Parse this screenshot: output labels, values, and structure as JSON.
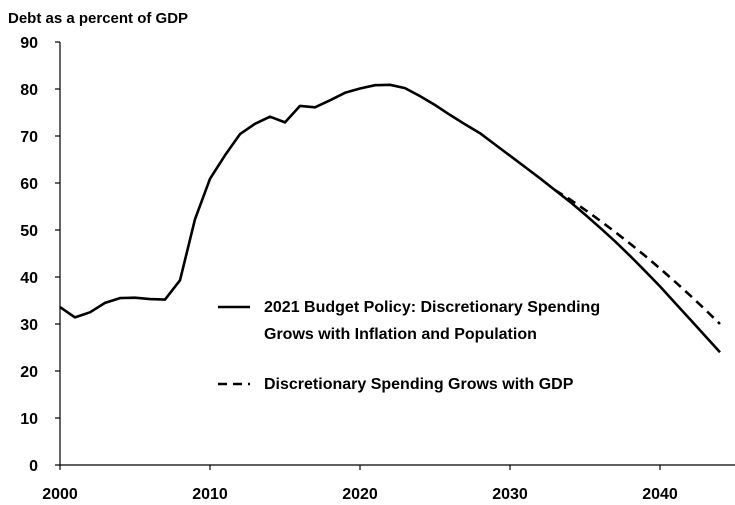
{
  "chart_data": {
    "type": "line",
    "ylabel": "Debt as a percent of GDP",
    "xlim": [
      2000,
      2045
    ],
    "ylim": [
      0,
      90
    ],
    "yticks": [
      0,
      10,
      20,
      30,
      40,
      50,
      60,
      70,
      80,
      90
    ],
    "xticks": [
      2000,
      2010,
      2020,
      2030,
      2040
    ],
    "grid": false,
    "legend_position": "center-right",
    "series": [
      {
        "name": "2021 Budget Policy:  Discretionary Spending Grows with Inflation and Population",
        "name_lines": [
          "2021 Budget Policy:  Discretionary Spending",
          "Grows with Inflation and Population"
        ],
        "style": "solid",
        "color": "#000000",
        "points": [
          [
            2000,
            33.6
          ],
          [
            2001,
            31.4
          ],
          [
            2002,
            32.5
          ],
          [
            2003,
            34.5
          ],
          [
            2004,
            35.5
          ],
          [
            2005,
            35.6
          ],
          [
            2006,
            35.3
          ],
          [
            2007,
            35.2
          ],
          [
            2008,
            39.3
          ],
          [
            2009,
            52.3
          ],
          [
            2010,
            60.9
          ],
          [
            2011,
            65.9
          ],
          [
            2012,
            70.4
          ],
          [
            2013,
            72.6
          ],
          [
            2014,
            74.1
          ],
          [
            2015,
            72.9
          ],
          [
            2016,
            76.4
          ],
          [
            2017,
            76.1
          ],
          [
            2018,
            77.6
          ],
          [
            2019,
            79.2
          ],
          [
            2020,
            80.1
          ],
          [
            2021,
            80.8
          ],
          [
            2022,
            80.9
          ],
          [
            2023,
            80.2
          ],
          [
            2024,
            78.5
          ],
          [
            2025,
            76.6
          ],
          [
            2026,
            74.5
          ],
          [
            2027,
            72.5
          ],
          [
            2028,
            70.6
          ],
          [
            2029,
            68.2
          ],
          [
            2030,
            65.8
          ],
          [
            2031,
            63.4
          ],
          [
            2032,
            61.0
          ],
          [
            2033,
            58.5
          ],
          [
            2034,
            56.0
          ],
          [
            2035,
            53.3
          ],
          [
            2036,
            50.5
          ],
          [
            2037,
            47.6
          ],
          [
            2038,
            44.5
          ],
          [
            2039,
            41.3
          ],
          [
            2040,
            38.0
          ],
          [
            2041,
            34.5
          ],
          [
            2042,
            31.0
          ],
          [
            2043,
            27.5
          ],
          [
            2044,
            24.0
          ]
        ]
      },
      {
        "name": "Discretionary Spending Grows with GDP",
        "name_lines": [
          "Discretionary Spending Grows with GDP"
        ],
        "style": "dashed",
        "color": "#000000",
        "points": [
          [
            2033,
            58.5
          ],
          [
            2034,
            56.5
          ],
          [
            2035,
            54.3
          ],
          [
            2036,
            52.0
          ],
          [
            2037,
            49.6
          ],
          [
            2038,
            47.1
          ],
          [
            2039,
            44.5
          ],
          [
            2040,
            41.8
          ],
          [
            2041,
            39.0
          ],
          [
            2042,
            36.1
          ],
          [
            2043,
            33.1
          ],
          [
            2044,
            30.0
          ]
        ]
      }
    ]
  }
}
